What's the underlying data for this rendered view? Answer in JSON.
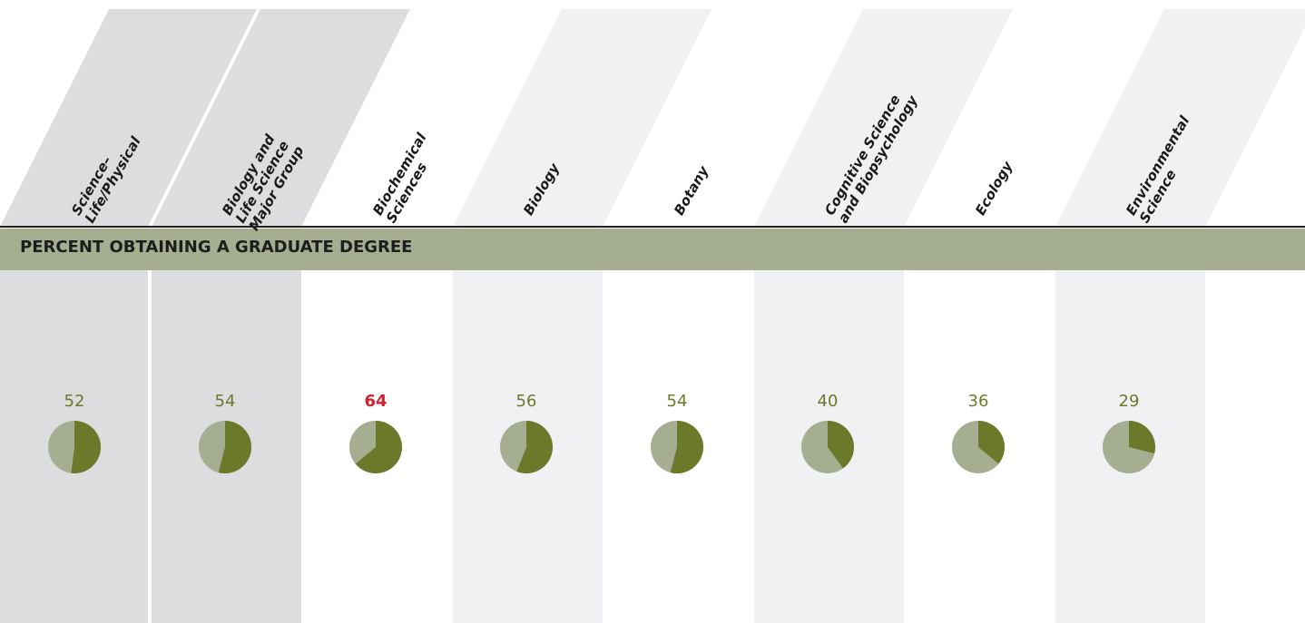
{
  "chart_data": {
    "type": "pie",
    "subtitle": "PERCENT OBTAINING A GRADUATE DEGREE",
    "categories": [
      "Science–\nLife/Physical",
      "Biology and\nLife Science\nMajor Group",
      "Biochemical\nSciences",
      "Biology",
      "Botany",
      "Cognitive Science\nand Biopsychology",
      "Ecology",
      "Environmental\nScience"
    ],
    "values": [
      52,
      54,
      64,
      56,
      54,
      40,
      36,
      29
    ],
    "color": "#6b7a2a",
    "rest_color": "#a5ae91",
    "label_color": "#6b7a2a",
    "highlight_index": 2,
    "highlight_color": "#d0222f",
    "column_colors": [
      "#dcdddf",
      "#dcdddf",
      "#ffffff",
      "#f0f1f2",
      "#ffffff",
      "#f0f1f2",
      "#ffffff",
      "#f0f1f2"
    ],
    "band_color": "#a5ae91"
  }
}
